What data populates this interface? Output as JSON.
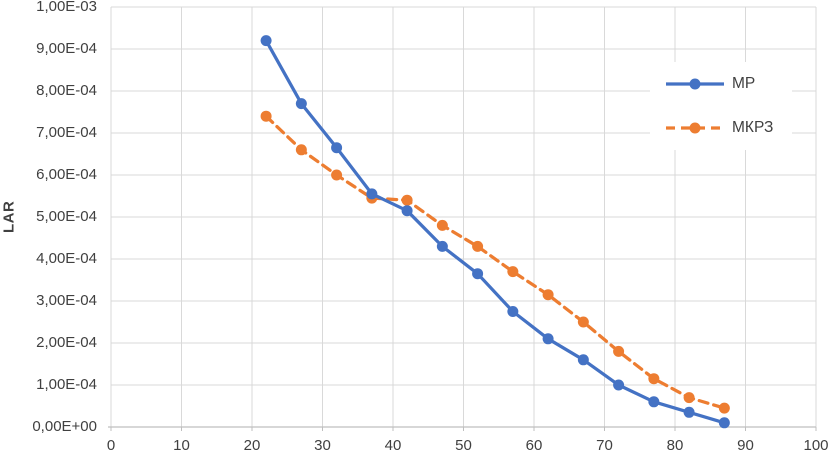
{
  "chart_data": {
    "type": "line",
    "title": "",
    "ylabel": "LAR",
    "xlabel": "",
    "x": [
      22,
      27,
      32,
      37,
      42,
      47,
      52,
      57,
      62,
      67,
      72,
      77,
      82,
      87
    ],
    "series": [
      {
        "name": "МР",
        "color": "#4472C4",
        "line_style": "solid",
        "marker": "circle",
        "values": [
          0.00092,
          0.00077,
          0.000665,
          0.000555,
          0.000515,
          0.00043,
          0.000365,
          0.000275,
          0.00021,
          0.00016,
          0.0001,
          6e-05,
          3.5e-05,
          1e-05
        ]
      },
      {
        "name": "МКРЗ",
        "color": "#ED7D31",
        "line_style": "dashed",
        "marker": "circle",
        "values": [
          0.00074,
          0.00066,
          0.0006,
          0.000545,
          0.00054,
          0.00048,
          0.00043,
          0.00037,
          0.000315,
          0.00025,
          0.00018,
          0.000115,
          7e-05,
          4.5e-05
        ]
      }
    ],
    "xlim": [
      0,
      100
    ],
    "ylim": [
      0,
      0.001
    ],
    "x_ticks": [
      0,
      10,
      20,
      30,
      40,
      50,
      60,
      70,
      80,
      90,
      100
    ],
    "y_tick_labels": [
      "0,00E+00",
      "1,00E-04",
      "2,00E-04",
      "3,00E-04",
      "4,00E-04",
      "5,00E-04",
      "6,00E-04",
      "7,00E-04",
      "8,00E-04",
      "9,00E-04",
      "1,00E-03"
    ],
    "grid": true,
    "legend_position": "inside-top-right",
    "colors": {
      "gridline": "#D9D9D9",
      "axis_line": "#BFBFBF",
      "tick_text": "#404040",
      "background": "#FFFFFF"
    }
  }
}
